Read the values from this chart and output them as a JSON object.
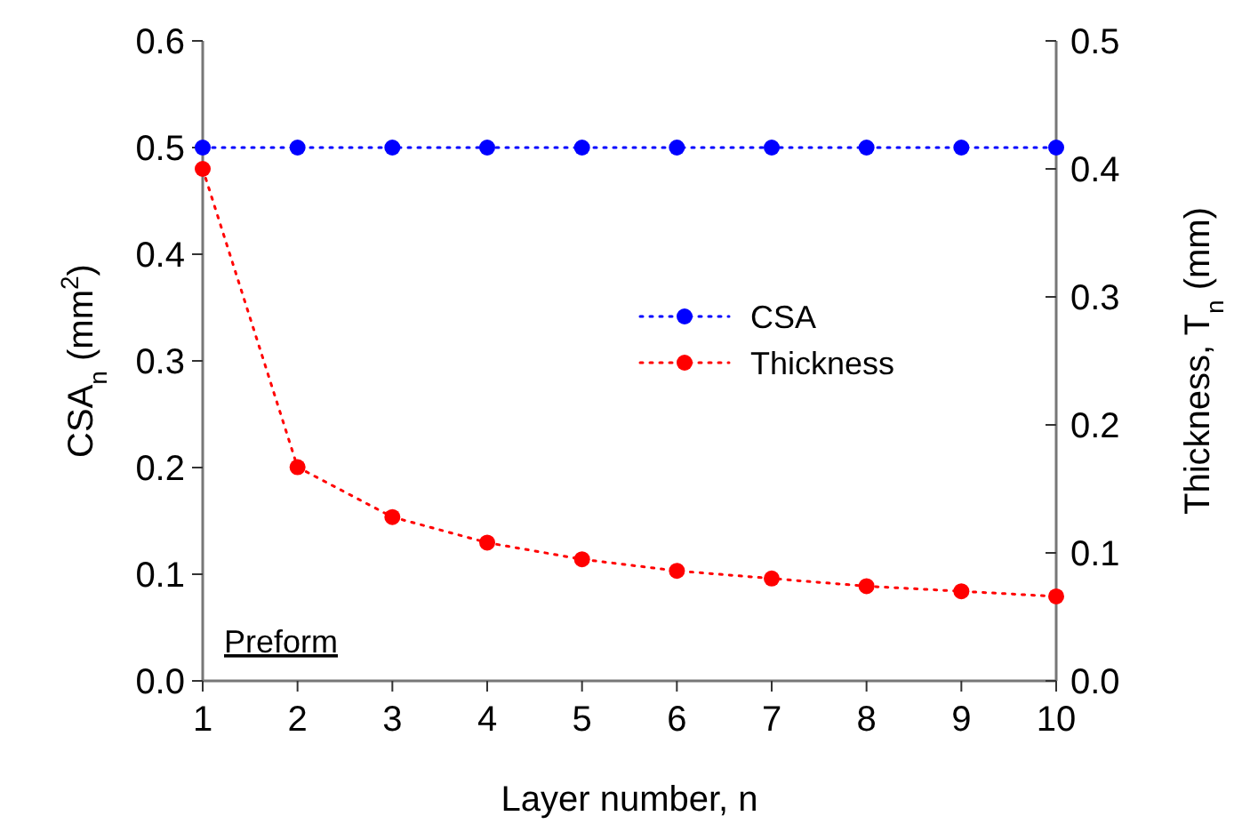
{
  "chart_data": {
    "type": "line",
    "xlabel": "Layer number, n",
    "ylabel": "CSA$_{n}$ (mm$^{2}$)",
    "y2label": "Thickness, T$_{n}$ (mm)",
    "x": [
      1,
      2,
      3,
      4,
      5,
      6,
      7,
      8,
      9,
      10
    ],
    "xlim": [
      1,
      10
    ],
    "xticks": [
      1,
      2,
      3,
      4,
      5,
      6,
      7,
      8,
      9,
      10
    ],
    "ylim": [
      0,
      0.6
    ],
    "yticks": [
      {
        "value": 0,
        "label": "0.0"
      },
      0.1,
      0.2,
      0.3,
      0.4,
      0.5,
      0.6
    ],
    "y2lim": [
      0,
      0.5
    ],
    "y2ticks": [
      {
        "value": 0,
        "label": "0.0"
      },
      0.1,
      0.2,
      0.3,
      0.4,
      0.5
    ],
    "series": [
      {
        "name": "CSA",
        "color": "#0000ff",
        "values": [
          0.5,
          0.5,
          0.5,
          0.5,
          0.5,
          0.5,
          0.5,
          0.5,
          0.5,
          0.5
        ]
      },
      {
        "name": "Thickness",
        "color": "#ff0000",
        "axis": "y2",
        "values": [
          0.4,
          0.167,
          0.128,
          0.108,
          0.095,
          0.086,
          0.08,
          0.074,
          0.07,
          0.066
        ]
      }
    ],
    "annotations": [
      "Preform"
    ],
    "marker": "circle",
    "line_style": "dotted",
    "legend": "right",
    "grid": false
  }
}
